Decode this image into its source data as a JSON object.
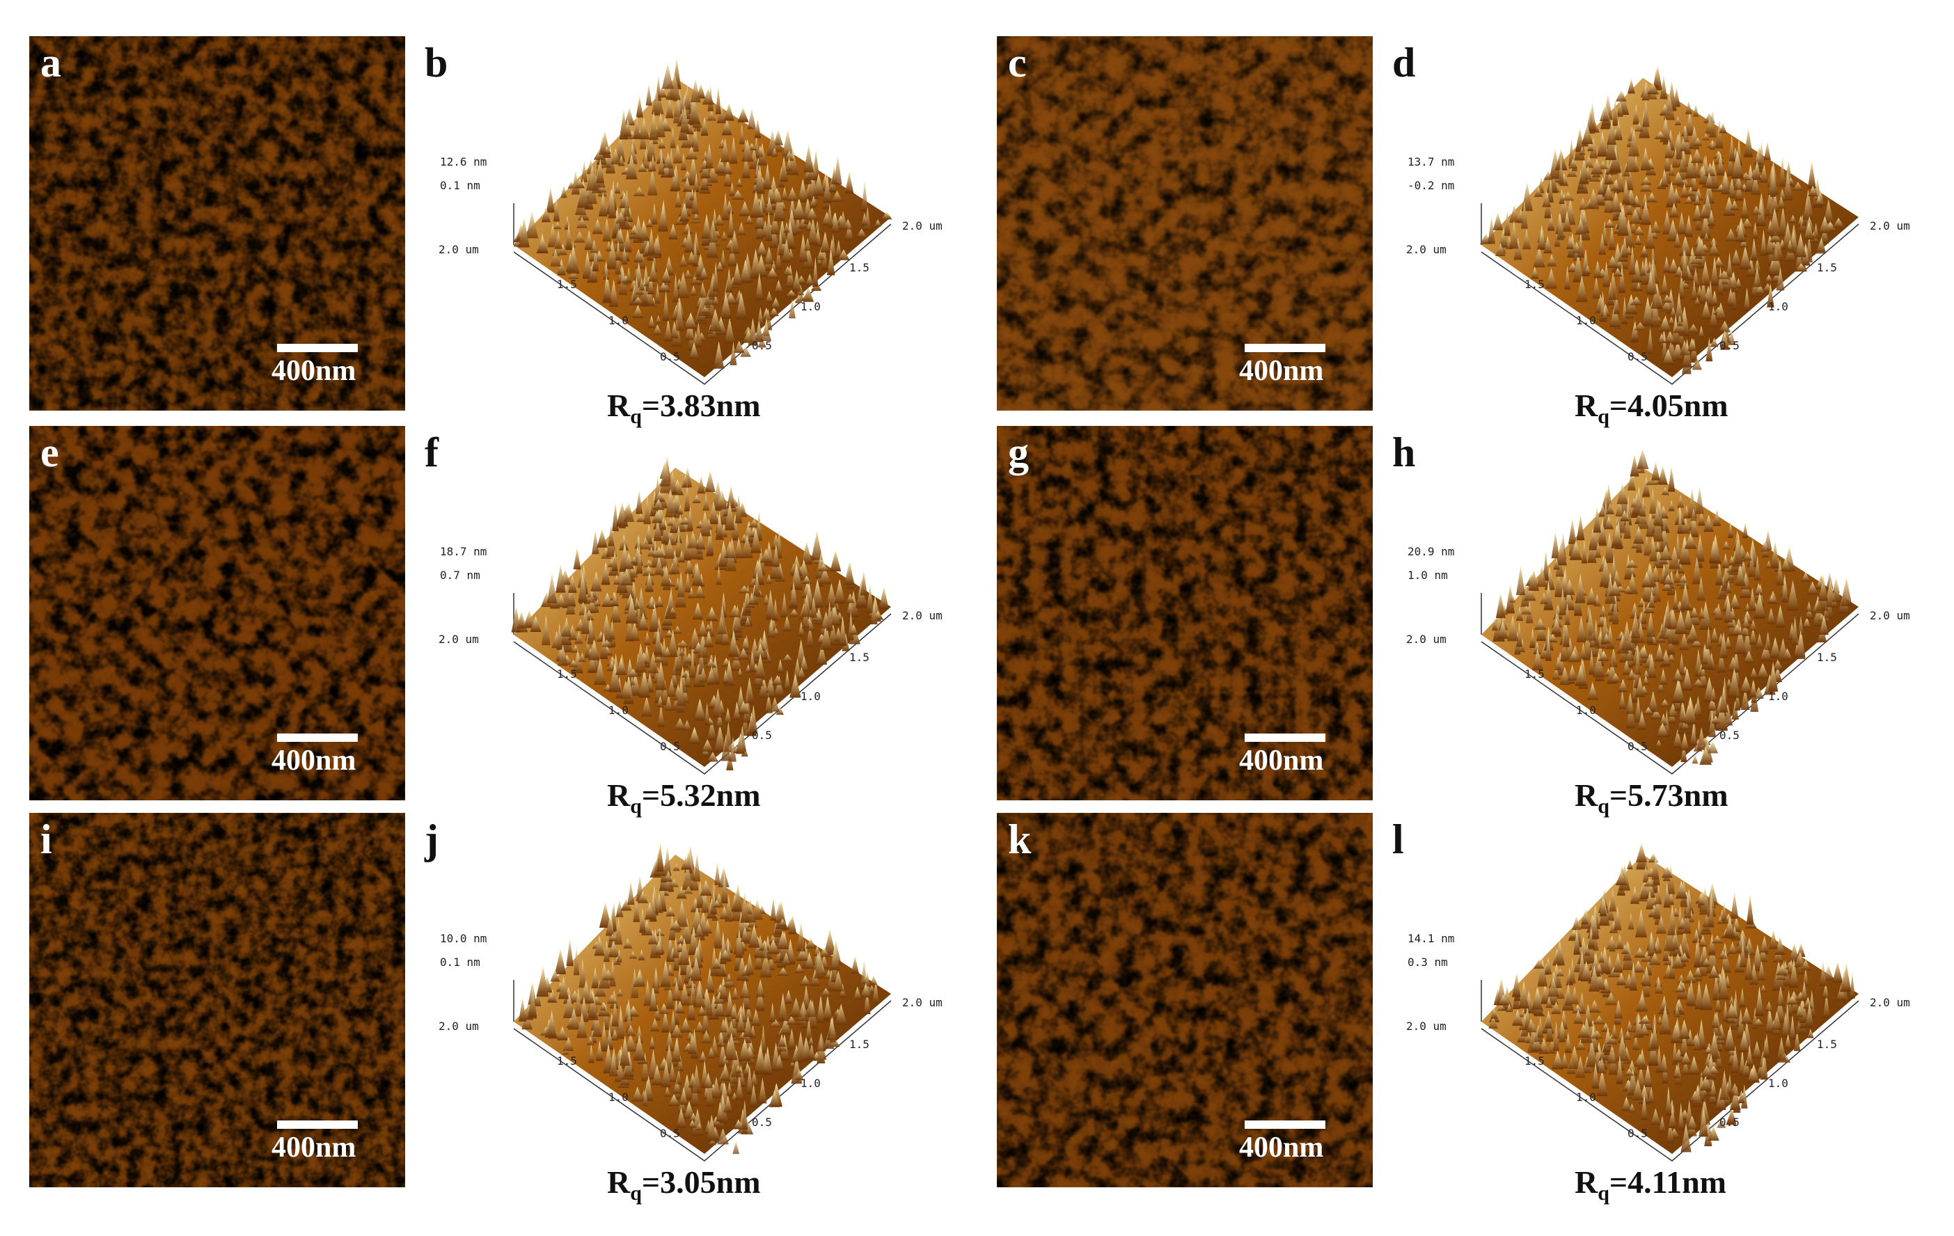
{
  "scale_bar_label": "400nm",
  "panels_2d": [
    {
      "label": "a"
    },
    {
      "label": "c"
    },
    {
      "label": "e"
    },
    {
      "label": "g"
    },
    {
      "label": "i"
    },
    {
      "label": "k"
    }
  ],
  "panels_3d": [
    {
      "label": "b",
      "z_top": "12.6 nm",
      "z_mid": "0.1 nm",
      "rq_value": "=3.83nm"
    },
    {
      "label": "d",
      "z_top": "13.7 nm",
      "z_mid": "-0.2 nm",
      "rq_value": "=4.05nm"
    },
    {
      "label": "f",
      "z_top": "18.7 nm",
      "z_mid": "0.7 nm",
      "rq_value": "=5.32nm"
    },
    {
      "label": "h",
      "z_top": "20.9 nm",
      "z_mid": "1.0 nm",
      "rq_value": "=5.73nm"
    },
    {
      "label": "j",
      "z_top": "10.0 nm",
      "z_mid": "0.1 nm",
      "rq_value": "=3.05nm"
    },
    {
      "label": "l",
      "z_top": "14.1 nm",
      "z_mid": "0.3 nm",
      "rq_value": "=4.11nm"
    }
  ],
  "axis_ticks": {
    "left_end": "2.0 um",
    "right_end": "2.0 um",
    "left": [
      "1.5",
      "1.0",
      "0.5"
    ],
    "right": [
      "1.5",
      "1.0",
      "0.5"
    ]
  },
  "rq_prefix": "R",
  "rq_sub": "q",
  "colors": {
    "afm_dark": "#4a1f02",
    "afm_mid": "#a8600f",
    "afm_light": "#f5d98a",
    "background": "#ffffff"
  }
}
